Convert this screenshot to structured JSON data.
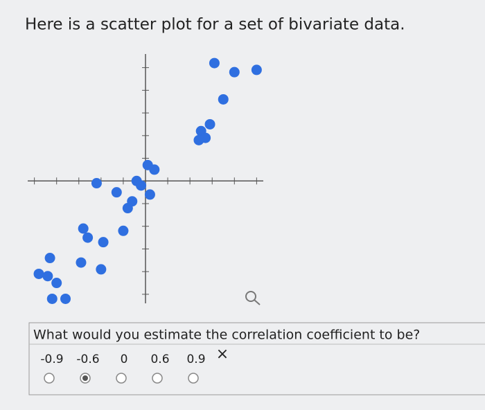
{
  "header": {
    "title": "Here is a scatter plot for a set of bivariate data."
  },
  "chart_data": {
    "type": "scatter",
    "color": "#2f6fe0",
    "x": [
      3.1,
      4.0,
      5.0,
      3.5,
      2.9,
      2.5,
      2.7,
      2.4,
      0.1,
      0.4,
      -0.4,
      -0.2,
      0.2,
      -1.3,
      -0.8,
      -0.6,
      -2.2,
      -2.8,
      -2.6,
      -1.9,
      -1.0,
      -4.3,
      -4.8,
      -4.4,
      -4.0,
      -2.9,
      -2.0,
      -4.2,
      -3.6
    ],
    "values": [
      5.2,
      4.8,
      4.9,
      3.6,
      2.5,
      2.2,
      1.9,
      1.8,
      0.7,
      0.5,
      0,
      -0.2,
      -0.6,
      -0.5,
      -1.2,
      -0.9,
      -0.1,
      -2.1,
      -2.5,
      -2.7,
      -2.2,
      -3.4,
      -4.1,
      -4.2,
      -4.5,
      -3.6,
      -3.9,
      -5.2,
      -5.2
    ],
    "xlim": [
      -5.3,
      5.3
    ],
    "ylim": [
      -5.4,
      5.6
    ],
    "xticks": [
      -5,
      -4,
      -3,
      -2,
      -1,
      1,
      2,
      3,
      4,
      5
    ],
    "yticks": [
      -5,
      -4,
      -3,
      -2,
      -1,
      1,
      2,
      3,
      4,
      5
    ]
  },
  "question": {
    "text": "What would you estimate the correlation coefficient to be?",
    "options": [
      "-0.9",
      "-0.6",
      "0",
      "0.6",
      "0.9"
    ],
    "selected": 1,
    "feedback": "×"
  }
}
